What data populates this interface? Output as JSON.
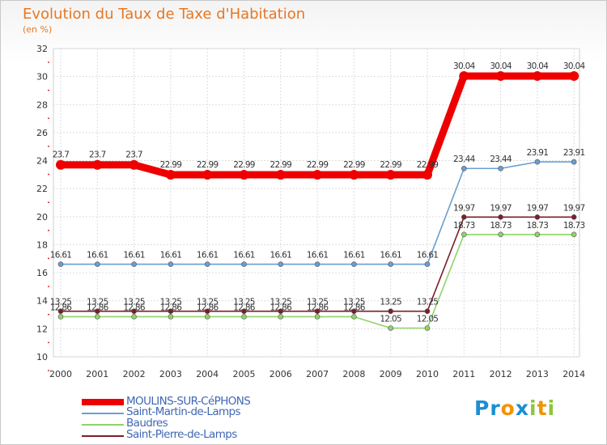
{
  "title": "Evolution du Taux de Taxe d'Habitation",
  "unit_label": "(en %)",
  "logo": {
    "letters": [
      "P",
      "r",
      "o",
      "x",
      "i",
      "t",
      "i"
    ],
    "colors": [
      "#1a8fd1",
      "#1a8fd1",
      "#f39200",
      "#1a8fd1",
      "#8cc63f",
      "#f39200",
      "#8cc63f"
    ]
  },
  "chart_data": {
    "type": "line",
    "title": "Evolution du Taux de Taxe d'Habitation",
    "ylabel": "(en %)",
    "xlabel": "",
    "ylim": [
      10,
      32
    ],
    "yticks": [
      10,
      12,
      14,
      16,
      18,
      20,
      22,
      24,
      26,
      28,
      30,
      32
    ],
    "grid": true,
    "categories": [
      "2000",
      "2001",
      "2002",
      "2003",
      "2004",
      "2005",
      "2006",
      "2007",
      "2008",
      "2009",
      "2010",
      "2011",
      "2012",
      "2013",
      "2014"
    ],
    "series": [
      {
        "name": "MOULINS-SUR-CéPHONS",
        "color": "#ee0000",
        "values": [
          23.7,
          23.7,
          23.7,
          22.99,
          22.99,
          22.99,
          22.99,
          22.99,
          22.99,
          22.99,
          22.99,
          30.04,
          30.04,
          30.04,
          30.04
        ],
        "labels": [
          "23.7",
          "23.7",
          "23.7",
          "22.99",
          "22.99",
          "22.99",
          "22.99",
          "22.99",
          "22.99",
          "22.99",
          "22.99",
          "30.04",
          "30.04",
          "30.04",
          "30.04"
        ]
      },
      {
        "name": "Saint-Martin-de-Lamps",
        "color": "#6b9ed0",
        "values": [
          16.61,
          16.61,
          16.61,
          16.61,
          16.61,
          16.61,
          16.61,
          16.61,
          16.61,
          16.61,
          16.61,
          23.44,
          23.44,
          23.91,
          23.91
        ],
        "labels": [
          "16.61",
          "16.61",
          "16.61",
          "16.61",
          "16.61",
          "16.61",
          "16.61",
          "16.61",
          "16.61",
          "16.61",
          "16.61",
          "23.44",
          "23.44",
          "23.91",
          "23.91"
        ]
      },
      {
        "name": "Baudres",
        "color": "#8fd36a",
        "values": [
          12.86,
          12.86,
          12.86,
          12.86,
          12.86,
          12.86,
          12.86,
          12.86,
          12.86,
          12.05,
          12.05,
          18.73,
          18.73,
          18.73,
          18.73
        ],
        "labels": [
          "12.86",
          "12.86",
          "12.86",
          "12.86",
          "12.86",
          "12.86",
          "12.86",
          "12.86",
          "12.86",
          "12.05",
          "12.05",
          "18.73",
          "18.73",
          "18.73",
          "18.73"
        ]
      },
      {
        "name": "Saint-Pierre-de-Lamps",
        "color": "#7a1f2a",
        "values": [
          13.25,
          13.25,
          13.25,
          13.25,
          13.25,
          13.25,
          13.25,
          13.25,
          13.25,
          13.25,
          13.25,
          19.97,
          19.97,
          19.97,
          19.97
        ],
        "labels": [
          "13.25",
          "13.25",
          "13.25",
          "13.25",
          "13.25",
          "13.25",
          "13.25",
          "13.25",
          "13.25",
          "13.25",
          "13.25",
          "19.97",
          "19.97",
          "19.97",
          "19.97"
        ]
      }
    ]
  }
}
